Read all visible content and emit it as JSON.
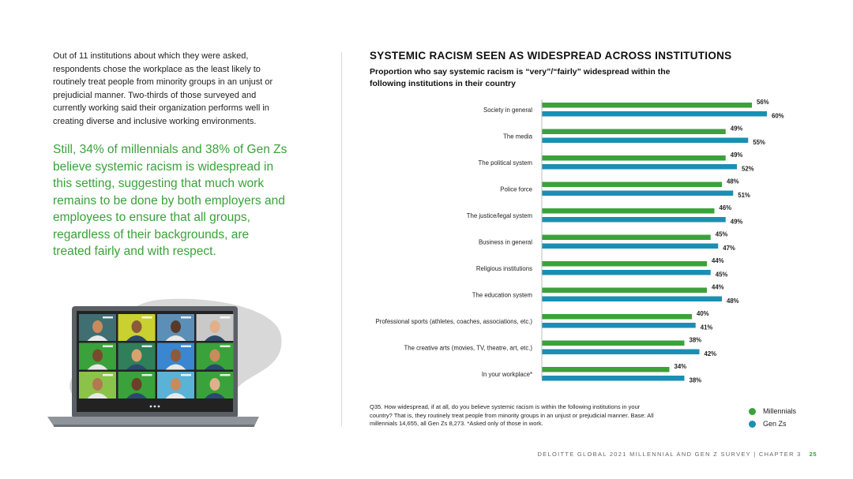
{
  "left": {
    "body": "Out of 11 institutions about which they were asked, respondents chose the workplace as the least likely to routinely treat people from minority groups in an unjust or prejudicial manner. Two-thirds of those surveyed and currently working said their organization performs well in creating diverse and inclusive working environments.",
    "quote": "Still, 34% of millennials and 38% of Gen Zs believe systemic racism is widespread in this setting, suggesting that much work remains to be done by both employers and employees to ensure that all groups, regardless of their backgrounds, are treated fairly and with respect."
  },
  "chart_data": {
    "type": "bar",
    "orientation": "horizontal",
    "title": "SYSTEMIC RACISM SEEN AS WIDESPREAD ACROSS INSTITUTIONS",
    "subtitle": "Proportion who say systemic racism is “very”/“fairly” widespread within the following institutions in their country",
    "categories": [
      "Society in general",
      "The media",
      "The political system",
      "Police force",
      "The justice/legal system",
      "Business in general",
      "Religious institutions",
      "The education system",
      "Professional sports (athletes, coaches, associations, etc.)",
      "The creative arts (movies, TV, theatre, art, etc.)",
      "In your workplace*"
    ],
    "series": [
      {
        "name": "Millennials",
        "color": "#3aa23a",
        "values": [
          56,
          49,
          49,
          48,
          46,
          45,
          44,
          44,
          40,
          38,
          34
        ]
      },
      {
        "name": "Gen Zs",
        "color": "#1a8fb3",
        "values": [
          60,
          55,
          52,
          51,
          49,
          47,
          45,
          48,
          41,
          42,
          38
        ]
      }
    ],
    "value_suffix": "%",
    "xlim": [
      0,
      60
    ],
    "grid": false,
    "legend_position": "bottom-right",
    "footnote": "Q35. How widespread, if at all, do you believe systemic racism is within the following institutions in your country? That is, they routinely treat people from minority groups in an unjust or prejudicial manner. Base: All millennials 14,655, all Gen Zs 8,273. *Asked only of those in work."
  },
  "footer": {
    "text": "DELOITTE GLOBAL 2021 MILLENNIAL AND GEN Z SURVEY | CHAPTER 3",
    "page": "25"
  },
  "illustration": {
    "icon": "laptop-video-call-icon",
    "tile_colors": [
      "#3f6f73",
      "#c8d12f",
      "#5c8fb8",
      "#c9c9c9",
      "#3aa23a",
      "#2f7f5a",
      "#3a86d0",
      "#3aa23a",
      "#8bc34a",
      "#3aa23a",
      "#5ab2d6",
      "#3aa23a"
    ]
  }
}
